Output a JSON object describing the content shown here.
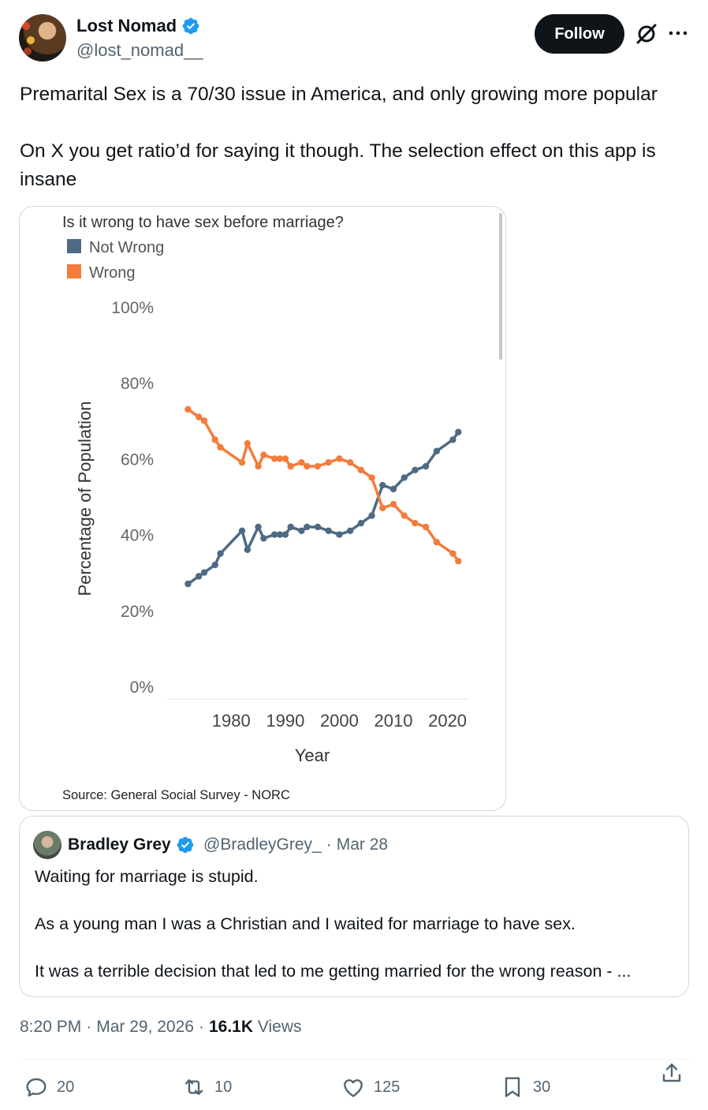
{
  "author": {
    "name": "Lost Nomad",
    "handle": "@lost_nomad__",
    "verified": true
  },
  "follow_label": "Follow",
  "icons": {
    "grok": "grok-icon",
    "more": "more-icon",
    "verified": "verified-badge-icon"
  },
  "colors": {
    "verified": "#1d9bf0",
    "follow_bg": "#0f1419",
    "not_wrong": "#4e6a84",
    "wrong": "#f47c3c"
  },
  "tweet": {
    "paragraphs": [
      "Premarital Sex is a 70/30 issue in America, and only growing more popular",
      "On X you get ratio’d for saying it though. The selection effect on this app is insane"
    ]
  },
  "chart_data": {
    "type": "line",
    "title": "Is it wrong to have sex before marriage?",
    "xlabel": "Year",
    "ylabel": "Percentage of Population",
    "source": "Source: General Social Survey - NORC",
    "x_ticks": [
      "1980",
      "1990",
      "2000",
      "2010",
      "2020"
    ],
    "y_ticks": [
      "100%",
      "80%",
      "60%",
      "40%",
      "20%",
      "0%"
    ],
    "xlim": [
      1968,
      2024
    ],
    "ylim": [
      0,
      100
    ],
    "legend_position": "top-left",
    "series": [
      {
        "name": "Not Wrong",
        "color": "#4e6a84",
        "points": [
          [
            1972,
            27
          ],
          [
            1974,
            29
          ],
          [
            1975,
            30
          ],
          [
            1977,
            32
          ],
          [
            1978,
            35
          ],
          [
            1982,
            41
          ],
          [
            1983,
            36
          ],
          [
            1985,
            42
          ],
          [
            1986,
            39
          ],
          [
            1988,
            40
          ],
          [
            1989,
            40
          ],
          [
            1990,
            40
          ],
          [
            1991,
            42
          ],
          [
            1993,
            41
          ],
          [
            1994,
            42
          ],
          [
            1996,
            42
          ],
          [
            1998,
            41
          ],
          [
            2000,
            40
          ],
          [
            2002,
            41
          ],
          [
            2004,
            43
          ],
          [
            2006,
            45
          ],
          [
            2008,
            53
          ],
          [
            2010,
            52
          ],
          [
            2012,
            55
          ],
          [
            2014,
            57
          ],
          [
            2016,
            58
          ],
          [
            2018,
            62
          ],
          [
            2021,
            65
          ],
          [
            2022,
            67
          ]
        ]
      },
      {
        "name": "Wrong",
        "color": "#f47c3c",
        "points": [
          [
            1972,
            73
          ],
          [
            1974,
            71
          ],
          [
            1975,
            70
          ],
          [
            1977,
            65
          ],
          [
            1978,
            63
          ],
          [
            1982,
            59
          ],
          [
            1983,
            64
          ],
          [
            1985,
            58
          ],
          [
            1986,
            61
          ],
          [
            1988,
            60
          ],
          [
            1989,
            60
          ],
          [
            1990,
            60
          ],
          [
            1991,
            58
          ],
          [
            1993,
            59
          ],
          [
            1994,
            58
          ],
          [
            1996,
            58
          ],
          [
            1998,
            59
          ],
          [
            2000,
            60
          ],
          [
            2002,
            59
          ],
          [
            2004,
            57
          ],
          [
            2006,
            55
          ],
          [
            2008,
            47
          ],
          [
            2010,
            48
          ],
          [
            2012,
            45
          ],
          [
            2014,
            43
          ],
          [
            2016,
            42
          ],
          [
            2018,
            38
          ],
          [
            2021,
            35
          ],
          [
            2022,
            33
          ]
        ]
      }
    ]
  },
  "quote": {
    "name": "Bradley Grey",
    "handle": "@BradleyGrey_",
    "separator": "·",
    "date": "Mar 28",
    "paragraphs": [
      "Waiting for marriage is stupid.",
      "As a young man I was a Christian and I waited for marriage to have sex.",
      "It was a terrible decision that led to me getting married for the wrong reason - ..."
    ]
  },
  "meta": {
    "time": "8:20 PM",
    "sep1": "·",
    "date": "Mar 29, 2026",
    "sep2": "·",
    "views_count": "16.1K",
    "views_label": "Views"
  },
  "actions": {
    "replies": "20",
    "reposts": "10",
    "likes": "125",
    "bookmarks": "30",
    "icons": [
      "reply-icon",
      "repost-icon",
      "like-icon",
      "bookmark-icon",
      "share-icon"
    ]
  }
}
